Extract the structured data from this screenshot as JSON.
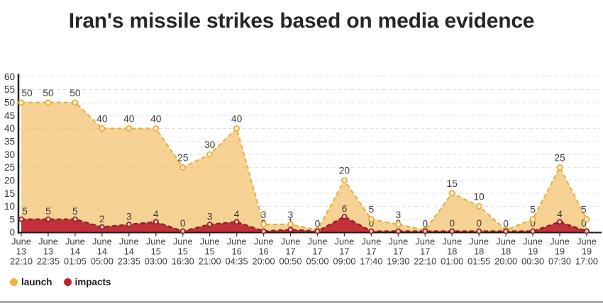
{
  "chart_data": {
    "type": "area",
    "title": "Iran's missile strikes based on media evidence",
    "xlabel": "",
    "ylabel": "",
    "ylim": [
      0,
      60
    ],
    "ytick_step": 5,
    "y_ticks": [
      0,
      5,
      10,
      15,
      20,
      25,
      30,
      35,
      40,
      45,
      50,
      55,
      60
    ],
    "grid": true,
    "grid_style": "dashed",
    "legend_position": "bottom-left",
    "x_labels": [
      [
        "June",
        "13",
        "22:10"
      ],
      [
        "June",
        "13",
        "22:35"
      ],
      [
        "June",
        "14",
        "01:05"
      ],
      [
        "June",
        "14",
        "05:00"
      ],
      [
        "June",
        "14",
        "23:35"
      ],
      [
        "June",
        "15",
        "03:00"
      ],
      [
        "June",
        "15",
        "16:30"
      ],
      [
        "June",
        "15",
        "21:00"
      ],
      [
        "June",
        "16",
        "04:35"
      ],
      [
        "June",
        "16",
        "20:00"
      ],
      [
        "June",
        "17",
        "00:50"
      ],
      [
        "June",
        "17",
        "05:00"
      ],
      [
        "June",
        "17",
        "09:00"
      ],
      [
        "June",
        "17",
        "17:40"
      ],
      [
        "June",
        "17",
        "19:30"
      ],
      [
        "June",
        "17",
        "22:10"
      ],
      [
        "June",
        "18",
        "01:00"
      ],
      [
        "June",
        "18",
        "01:55"
      ],
      [
        "June",
        "18",
        "20:00"
      ],
      [
        "June",
        "19",
        "00:30"
      ],
      [
        "June",
        "19",
        "07:30"
      ],
      [
        "June",
        "19",
        "17:00"
      ]
    ],
    "series": [
      {
        "name": "launch",
        "values": [
          50,
          50,
          50,
          40,
          40,
          40,
          25,
          30,
          40,
          3,
          3,
          0,
          20,
          5,
          3,
          0,
          15,
          10,
          0,
          5,
          25,
          5
        ],
        "line_color": "#EAAE3E",
        "fill_color": "rgba(239,180,70,0.58)",
        "marker_fill": "#FDEBC8",
        "legend_color": "#F2B240",
        "line_style": "dashed"
      },
      {
        "name": "impacts",
        "values": [
          5,
          5,
          5,
          2,
          3,
          4,
          0,
          3,
          4,
          0,
          1,
          0,
          6,
          0,
          0,
          0,
          0,
          0,
          0,
          0,
          4,
          0
        ],
        "line_color": "#8F1D25",
        "fill_color": "#C23039",
        "marker_fill": "#F2C4BE",
        "legend_color": "#C1242F",
        "line_style": "dashed"
      }
    ],
    "value_label_color": "#3C3C3C",
    "axis_color": "#1C1C1C",
    "gridline_color": "#DFDFDF",
    "tick_label_color": "#3F3F3F"
  }
}
